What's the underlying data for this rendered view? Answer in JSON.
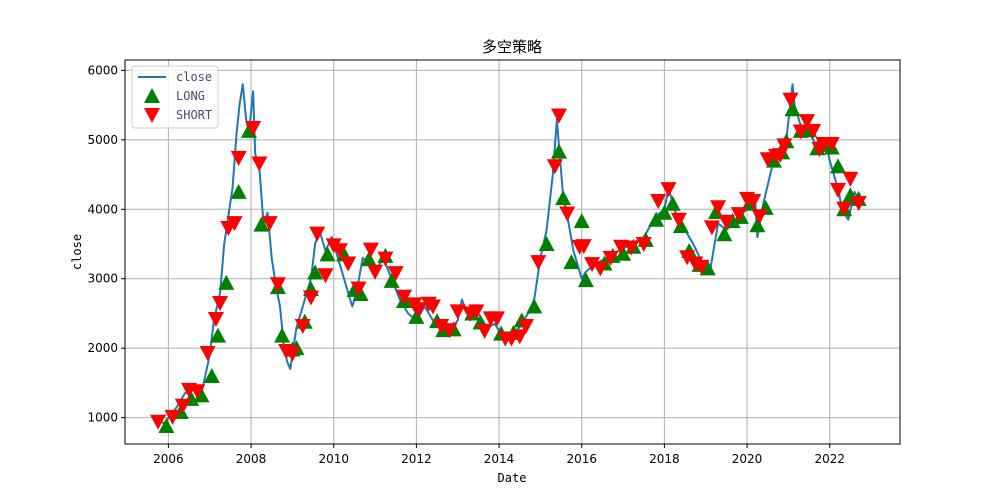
{
  "chart_data": {
    "type": "line",
    "title": "多空策略",
    "xlabel": "Date",
    "ylabel": "close",
    "xlim": [
      2004.95,
      2023.7
    ],
    "ylim": [
      620,
      6150
    ],
    "x_ticks": [
      2006,
      2008,
      2010,
      2012,
      2014,
      2016,
      2018,
      2020,
      2022
    ],
    "y_ticks": [
      1000,
      2000,
      3000,
      4000,
      5000,
      6000
    ],
    "grid": true,
    "legend": {
      "position": "top-left",
      "entries": [
        {
          "label": "close",
          "marker": "line",
          "color": "#1f77b4"
        },
        {
          "label": "LONG",
          "marker": "triangle-up",
          "color": "#008000"
        },
        {
          "label": "SHORT",
          "marker": "triangle-down",
          "color": "#ff0000"
        }
      ]
    },
    "series": [
      {
        "name": "close",
        "color": "#1f77b4",
        "x": [
          2005.75,
          2005.9,
          2006.0,
          2006.2,
          2006.4,
          2006.6,
          2006.8,
          2007.0,
          2007.1,
          2007.25,
          2007.35,
          2007.45,
          2007.55,
          2007.65,
          2007.72,
          2007.8,
          2007.88,
          2007.95,
          2008.05,
          2008.1,
          2008.2,
          2008.3,
          2008.4,
          2008.5,
          2008.6,
          2008.7,
          2008.8,
          2008.88,
          2008.95,
          2009.1,
          2009.3,
          2009.45,
          2009.55,
          2009.65,
          2009.8,
          2009.95,
          2010.1,
          2010.3,
          2010.45,
          2010.55,
          2010.7,
          2010.85,
          2011.0,
          2011.2,
          2011.4,
          2011.6,
          2011.8,
          2012.0,
          2012.2,
          2012.4,
          2012.6,
          2012.8,
          2013.0,
          2013.1,
          2013.3,
          2013.5,
          2013.7,
          2013.9,
          2014.1,
          2014.3,
          2014.5,
          2014.7,
          2014.85,
          2015.0,
          2015.15,
          2015.3,
          2015.4,
          2015.45,
          2015.55,
          2015.65,
          2015.8,
          2016.0,
          2016.1,
          2016.3,
          2016.6,
          2016.9,
          2017.2,
          2017.5,
          2017.8,
          2018.0,
          2018.1,
          2018.3,
          2018.5,
          2018.7,
          2018.9,
          2019.1,
          2019.3,
          2019.5,
          2019.8,
          2020.0,
          2020.2,
          2020.25,
          2020.4,
          2020.6,
          2020.8,
          2020.95,
          2021.1,
          2021.15,
          2021.3,
          2021.5,
          2021.7,
          2021.9,
          2022.0,
          2022.2,
          2022.3,
          2022.45,
          2022.6,
          2022.75
        ],
        "values": [
          950,
          920,
          1000,
          1150,
          1350,
          1400,
          1350,
          1900,
          2400,
          2800,
          3500,
          3900,
          4300,
          5100,
          5500,
          5800,
          5300,
          5100,
          5700,
          4800,
          4600,
          3800,
          3950,
          3300,
          2900,
          2600,
          2000,
          1800,
          1700,
          2300,
          2700,
          3000,
          3500,
          3700,
          3400,
          3600,
          3300,
          2900,
          2600,
          2800,
          3300,
          3200,
          3100,
          3300,
          3000,
          2700,
          2500,
          2400,
          2600,
          2400,
          2300,
          2250,
          2400,
          2700,
          2400,
          2500,
          2300,
          2350,
          2150,
          2200,
          2300,
          2500,
          2700,
          3300,
          3700,
          4500,
          5300,
          4900,
          4200,
          3900,
          3400,
          3000,
          3100,
          3200,
          3300,
          3400,
          3500,
          3600,
          3900,
          4000,
          4300,
          3900,
          3700,
          3500,
          3250,
          3100,
          3800,
          3700,
          3900,
          4000,
          4100,
          3600,
          4100,
          4600,
          4800,
          5000,
          5800,
          5500,
          5200,
          5100,
          4900,
          5000,
          4700,
          4300,
          4000,
          3850,
          4250,
          4100
        ]
      }
    ],
    "long_signals": [
      [
        2005.95,
        880
      ],
      [
        2006.3,
        1080
      ],
      [
        2006.55,
        1270
      ],
      [
        2006.8,
        1320
      ],
      [
        2007.05,
        1600
      ],
      [
        2007.2,
        2180
      ],
      [
        2007.4,
        2940
      ],
      [
        2007.7,
        4250
      ],
      [
        2007.95,
        5130
      ],
      [
        2008.25,
        3780
      ],
      [
        2008.65,
        2880
      ],
      [
        2008.75,
        2180
      ],
      [
        2009.0,
        1980
      ],
      [
        2009.1,
        2000
      ],
      [
        2009.3,
        2380
      ],
      [
        2009.45,
        2850
      ],
      [
        2009.55,
        3090
      ],
      [
        2009.85,
        3350
      ],
      [
        2010.25,
        3350
      ],
      [
        2010.5,
        2840
      ],
      [
        2010.65,
        2780
      ],
      [
        2010.85,
        3280
      ],
      [
        2011.25,
        3330
      ],
      [
        2011.4,
        2970
      ],
      [
        2011.7,
        2680
      ],
      [
        2012.0,
        2450
      ],
      [
        2012.5,
        2390
      ],
      [
        2012.65,
        2260
      ],
      [
        2012.9,
        2270
      ],
      [
        2013.35,
        2500
      ],
      [
        2013.55,
        2370
      ],
      [
        2014.05,
        2210
      ],
      [
        2014.35,
        2220
      ],
      [
        2014.55,
        2400
      ],
      [
        2014.85,
        2600
      ],
      [
        2015.15,
        3500
      ],
      [
        2015.45,
        4830
      ],
      [
        2015.55,
        4160
      ],
      [
        2015.75,
        3240
      ],
      [
        2016.0,
        3830
      ],
      [
        2016.1,
        2980
      ],
      [
        2016.55,
        3220
      ],
      [
        2016.75,
        3330
      ],
      [
        2017.0,
        3360
      ],
      [
        2017.25,
        3460
      ],
      [
        2017.55,
        3560
      ],
      [
        2017.8,
        3850
      ],
      [
        2018.0,
        3950
      ],
      [
        2018.2,
        4080
      ],
      [
        2018.4,
        3760
      ],
      [
        2018.6,
        3400
      ],
      [
        2018.85,
        3200
      ],
      [
        2019.05,
        3150
      ],
      [
        2019.25,
        3960
      ],
      [
        2019.45,
        3640
      ],
      [
        2019.65,
        3830
      ],
      [
        2019.85,
        3890
      ],
      [
        2020.05,
        4080
      ],
      [
        2020.25,
        3770
      ],
      [
        2020.45,
        4020
      ],
      [
        2020.65,
        4700
      ],
      [
        2020.85,
        4820
      ],
      [
        2020.95,
        4980
      ],
      [
        2021.1,
        5440
      ],
      [
        2021.3,
        5130
      ],
      [
        2021.5,
        5140
      ],
      [
        2021.7,
        4880
      ],
      [
        2021.85,
        4930
      ],
      [
        2022.05,
        4890
      ],
      [
        2022.2,
        4620
      ],
      [
        2022.35,
        4000
      ],
      [
        2022.5,
        4200
      ],
      [
        2022.7,
        4150
      ]
    ],
    "short_signals": [
      [
        2005.75,
        940
      ],
      [
        2006.1,
        1010
      ],
      [
        2006.35,
        1170
      ],
      [
        2006.5,
        1400
      ],
      [
        2006.7,
        1380
      ],
      [
        2006.95,
        1930
      ],
      [
        2007.15,
        2420
      ],
      [
        2007.25,
        2650
      ],
      [
        2007.45,
        3730
      ],
      [
        2007.6,
        3800
      ],
      [
        2007.7,
        4740
      ],
      [
        2008.05,
        5170
      ],
      [
        2008.2,
        4660
      ],
      [
        2008.45,
        3800
      ],
      [
        2008.65,
        2920
      ],
      [
        2008.85,
        1960
      ],
      [
        2009.0,
        1920
      ],
      [
        2009.25,
        2320
      ],
      [
        2009.45,
        2730
      ],
      [
        2009.6,
        3650
      ],
      [
        2009.8,
        3050
      ],
      [
        2010.0,
        3480
      ],
      [
        2010.15,
        3410
      ],
      [
        2010.35,
        3220
      ],
      [
        2010.6,
        2860
      ],
      [
        2010.9,
        3420
      ],
      [
        2011.0,
        3100
      ],
      [
        2011.25,
        3290
      ],
      [
        2011.5,
        3080
      ],
      [
        2011.7,
        2740
      ],
      [
        2011.95,
        2630
      ],
      [
        2012.05,
        2560
      ],
      [
        2012.3,
        2640
      ],
      [
        2012.4,
        2600
      ],
      [
        2012.6,
        2320
      ],
      [
        2012.8,
        2260
      ],
      [
        2013.0,
        2530
      ],
      [
        2013.3,
        2500
      ],
      [
        2013.45,
        2530
      ],
      [
        2013.65,
        2250
      ],
      [
        2013.8,
        2430
      ],
      [
        2013.95,
        2430
      ],
      [
        2014.15,
        2140
      ],
      [
        2014.3,
        2140
      ],
      [
        2014.5,
        2170
      ],
      [
        2014.65,
        2320
      ],
      [
        2014.95,
        3240
      ],
      [
        2015.35,
        4620
      ],
      [
        2015.45,
        5350
      ],
      [
        2015.65,
        3940
      ],
      [
        2015.95,
        3460
      ],
      [
        2016.05,
        3470
      ],
      [
        2016.25,
        3210
      ],
      [
        2016.45,
        3150
      ],
      [
        2016.7,
        3300
      ],
      [
        2016.95,
        3460
      ],
      [
        2017.2,
        3450
      ],
      [
        2017.5,
        3500
      ],
      [
        2017.85,
        4120
      ],
      [
        2018.1,
        4290
      ],
      [
        2018.35,
        3850
      ],
      [
        2018.55,
        3310
      ],
      [
        2018.75,
        3220
      ],
      [
        2018.9,
        3170
      ],
      [
        2019.15,
        3740
      ],
      [
        2019.3,
        4030
      ],
      [
        2019.5,
        3820
      ],
      [
        2019.8,
        3930
      ],
      [
        2020.0,
        4150
      ],
      [
        2020.15,
        4120
      ],
      [
        2020.3,
        3900
      ],
      [
        2020.5,
        4720
      ],
      [
        2020.7,
        4770
      ],
      [
        2020.8,
        4780
      ],
      [
        2020.9,
        4920
      ],
      [
        2021.05,
        5580
      ],
      [
        2021.3,
        5120
      ],
      [
        2021.45,
        5270
      ],
      [
        2021.6,
        5130
      ],
      [
        2021.75,
        4870
      ],
      [
        2021.85,
        4940
      ],
      [
        2022.05,
        4940
      ],
      [
        2022.2,
        4280
      ],
      [
        2022.35,
        4010
      ],
      [
        2022.5,
        4440
      ],
      [
        2022.7,
        4090
      ]
    ]
  }
}
